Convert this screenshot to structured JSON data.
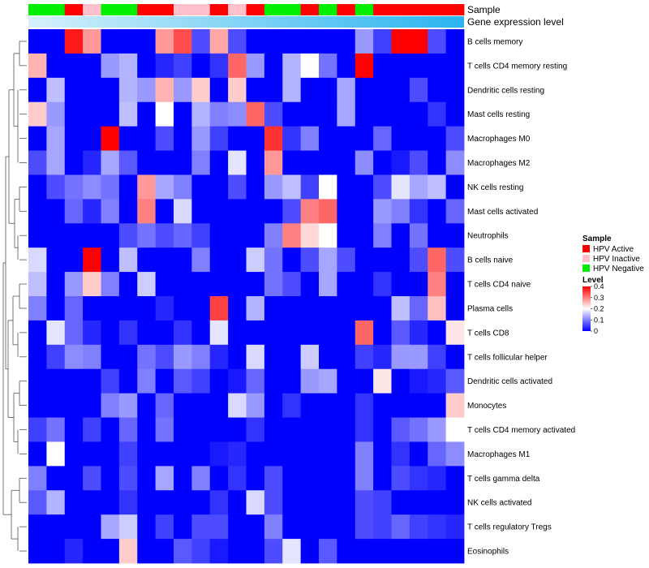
{
  "chart_data": {
    "type": "heatmap",
    "annotation_labels": {
      "sample": "Sample",
      "gene_expression": "Gene expression level"
    },
    "sample_legend": {
      "title": "Sample",
      "entries": [
        {
          "key": "A",
          "label": "HPV Active",
          "color": "#ff0000"
        },
        {
          "key": "I",
          "label": "HPV Inactive",
          "color": "#ffc0cb"
        },
        {
          "key": "N",
          "label": "HPV Negative",
          "color": "#00ee00"
        }
      ]
    },
    "level_legend": {
      "title": "Level",
      "ticks": [
        0,
        0.1,
        0.2,
        0.3,
        0.4
      ],
      "tick_labels": [
        "0",
        "0.1",
        "0.2",
        "0.3",
        "0.4"
      ],
      "range": [
        0,
        0.4
      ],
      "colors": {
        "low": "#0000ff",
        "mid": "#ffffff",
        "high": "#ff0000",
        "mid_value": 0.2
      }
    },
    "sample_groups": [
      "N",
      "N",
      "A",
      "I",
      "N",
      "N",
      "A",
      "A",
      "I",
      "I",
      "A",
      "I",
      "A",
      "N",
      "N",
      "A",
      "N",
      "A",
      "N",
      "A",
      "A",
      "A",
      "A",
      "A"
    ],
    "gene_expression_gradient": [
      "#d6f1fb",
      "#2ab4f0"
    ],
    "rows": [
      "B cells memory",
      "T cells CD4 memory resting",
      "Dendritic cells resting",
      "Mast cells resting",
      "Macrophages M0",
      "Macrophages M2",
      "NK cells resting",
      "Mast cells activated",
      "Neutrophils",
      "B cells naive",
      "T cells CD4 naive",
      "Plasma cells",
      "T cells CD8",
      "T cells follicular helper",
      "Dendritic cells activated",
      "Monocytes",
      "T cells CD4 memory activated",
      "Macrophages M1",
      "T cells gamma delta",
      "NK cells activated",
      "T cells regulatory  Tregs",
      "Eosinophils"
    ],
    "values": [
      [
        0,
        0,
        0.38,
        0.28,
        0,
        0,
        0,
        0.28,
        0.34,
        0.06,
        0.27,
        0.06,
        0,
        0,
        0,
        0,
        0,
        0,
        0.12,
        0.05,
        0.4,
        0.4,
        0.06,
        0
      ],
      [
        0.26,
        0,
        0,
        0,
        0.12,
        0.14,
        0,
        0.03,
        0.05,
        0,
        0.04,
        0.32,
        0.12,
        0,
        0.14,
        0.2,
        0.09,
        0,
        0.4,
        0,
        0,
        0,
        0,
        0
      ],
      [
        0,
        0.15,
        0,
        0,
        0,
        0.14,
        0.12,
        0.26,
        0.12,
        0.24,
        0,
        0.24,
        0,
        0,
        0.14,
        0,
        0,
        0.13,
        0,
        0,
        0,
        0.06,
        0,
        0
      ],
      [
        0.24,
        0.12,
        0,
        0,
        0,
        0.15,
        0,
        0.2,
        0,
        0.14,
        0.1,
        0.11,
        0.32,
        0.06,
        0,
        0,
        0,
        0.13,
        0,
        0,
        0,
        0,
        0.04,
        0
      ],
      [
        0,
        0.13,
        0,
        0,
        0.4,
        0,
        0,
        0.06,
        0,
        0.12,
        0.05,
        0,
        0,
        0.36,
        0.04,
        0.1,
        0,
        0,
        0,
        0.08,
        0,
        0,
        0,
        0.06
      ],
      [
        0.06,
        0.13,
        0,
        0.03,
        0.13,
        0.07,
        0,
        0,
        0,
        0.1,
        0,
        0.18,
        0,
        0.28,
        0,
        0,
        0,
        0,
        0.11,
        0,
        0.02,
        0.06,
        0,
        0.11
      ],
      [
        0,
        0.06,
        0.09,
        0.11,
        0.09,
        0,
        0.28,
        0.13,
        0.1,
        0,
        0,
        0.06,
        0,
        0.12,
        0.15,
        0.05,
        0.2,
        0,
        0,
        0.06,
        0.18,
        0.13,
        0.15,
        0
      ],
      [
        0,
        0,
        0.08,
        0.03,
        0.1,
        0,
        0.3,
        0,
        0.17,
        0,
        0,
        0,
        0,
        0,
        0.06,
        0.3,
        0.32,
        0,
        0,
        0.12,
        0.1,
        0.04,
        0,
        0.08
      ],
      [
        0,
        0,
        0,
        0,
        0,
        0.06,
        0.09,
        0.06,
        0.08,
        0.05,
        0,
        0,
        0,
        0.1,
        0.3,
        0.23,
        0.2,
        0,
        0,
        0.1,
        0,
        0.09,
        0,
        0
      ],
      [
        0.17,
        0,
        0,
        0.4,
        0,
        0.15,
        0,
        0,
        0,
        0.1,
        0,
        0,
        0.16,
        0.09,
        0,
        0.06,
        0.13,
        0.06,
        0,
        0,
        0,
        0.06,
        0.32,
        0.06
      ],
      [
        0.15,
        0,
        0.12,
        0.24,
        0.1,
        0,
        0.16,
        0,
        0,
        0,
        0,
        0,
        0,
        0.09,
        0.06,
        0,
        0.13,
        0,
        0,
        0.04,
        0,
        0,
        0.3,
        0
      ],
      [
        0.1,
        0,
        0.08,
        0,
        0,
        0,
        0,
        0.03,
        0,
        0,
        0.35,
        0,
        0.14,
        0,
        0,
        0,
        0,
        0,
        0,
        0,
        0.15,
        0.08,
        0.25,
        0
      ],
      [
        0,
        0.18,
        0.08,
        0.03,
        0,
        0.04,
        0,
        0,
        0.04,
        0,
        0.18,
        0,
        0,
        0,
        0,
        0,
        0,
        0,
        0.32,
        0,
        0.07,
        0.03,
        0,
        0.22
      ],
      [
        0,
        0.05,
        0.11,
        0.1,
        0,
        0,
        0.09,
        0.06,
        0.12,
        0.1,
        0.03,
        0,
        0.17,
        0,
        0,
        0.16,
        0,
        0,
        0.05,
        0.03,
        0.12,
        0.12,
        0.05,
        0
      ],
      [
        0,
        0,
        0,
        0,
        0.05,
        0,
        0.1,
        0,
        0.07,
        0.05,
        0,
        0.02,
        0.08,
        0,
        0,
        0.12,
        0.13,
        0,
        0,
        0.22,
        0,
        0.02,
        0.03,
        0.07
      ],
      [
        0,
        0,
        0,
        0,
        0.1,
        0.12,
        0,
        0.08,
        0,
        0,
        0,
        0.17,
        0.12,
        0,
        0.04,
        0,
        0,
        0,
        0.04,
        0,
        0,
        0,
        0,
        0.24
      ],
      [
        0.05,
        0.09,
        0,
        0.05,
        0,
        0.08,
        0,
        0.09,
        0,
        0,
        0,
        0,
        0.04,
        0,
        0,
        0,
        0,
        0,
        0.04,
        0,
        0.07,
        0.09,
        0.12,
        0.2
      ],
      [
        0,
        0.2,
        0,
        0,
        0,
        0.05,
        0,
        0,
        0,
        0,
        0.02,
        0.03,
        0,
        0,
        0,
        0,
        0,
        0,
        0.1,
        0,
        0.04,
        0,
        0.08,
        0.11
      ],
      [
        0.1,
        0,
        0,
        0.06,
        0,
        0.06,
        0,
        0.13,
        0,
        0.1,
        0,
        0.04,
        0,
        0.06,
        0,
        0,
        0,
        0,
        0.1,
        0,
        0.06,
        0.04,
        0.03,
        0
      ],
      [
        0.07,
        0.14,
        0,
        0,
        0,
        0.04,
        0,
        0,
        0,
        0,
        0.04,
        0,
        0.17,
        0.06,
        0,
        0,
        0,
        0,
        0.06,
        0.05,
        0,
        0,
        0,
        0
      ],
      [
        0,
        0,
        0,
        0,
        0.13,
        0.16,
        0,
        0.05,
        0,
        0.06,
        0.06,
        0,
        0,
        0.1,
        0,
        0,
        0,
        0,
        0.06,
        0.05,
        0.08,
        0.05,
        0.04,
        0.03
      ],
      [
        0,
        0,
        0.03,
        0,
        0,
        0.24,
        0,
        0,
        0.07,
        0.05,
        0.02,
        0,
        0,
        0.06,
        0.18,
        0,
        0.07,
        0,
        0,
        0,
        0,
        0,
        0,
        0
      ]
    ]
  }
}
